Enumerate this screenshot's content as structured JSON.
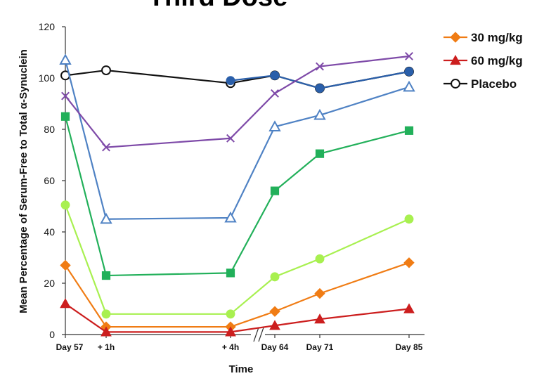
{
  "chart_data": {
    "type": "line",
    "title": "Third Dose",
    "xlabel": "Time",
    "ylabel": "Mean Percentage of Serum-Free to Total α-Synuclein",
    "ylim": [
      0,
      120
    ],
    "yticks": [
      0,
      20,
      40,
      60,
      80,
      100,
      120
    ],
    "categories": [
      "Day 57",
      "+ 1h",
      "+ 4h",
      "Day 64",
      "Day 71",
      "Day 85"
    ],
    "axis_break_after": "+ 4h",
    "legend_position": "top-right",
    "series": [
      {
        "name": "30 mg/kg",
        "color": "#f07c14",
        "marker": "diamond-filled",
        "legend": true,
        "values": [
          27,
          3,
          3,
          9,
          16,
          28
        ]
      },
      {
        "name": "60 mg/kg",
        "color": "#cc1e1e",
        "marker": "triangle-filled",
        "legend": true,
        "values": [
          12,
          1,
          1,
          3.5,
          6,
          10
        ]
      },
      {
        "name": "Placebo",
        "color": "#111111",
        "marker": "circle-open",
        "legend": true,
        "values": [
          101,
          103,
          98,
          101,
          96,
          102.5
        ]
      },
      {
        "color": "#2a5faa",
        "marker": "circle-filled",
        "legend": false,
        "values": [
          null,
          null,
          99,
          101,
          96,
          102.5
        ]
      },
      {
        "color": "#4f82c4",
        "marker": "triangle-open",
        "legend": false,
        "values": [
          107,
          45,
          45.5,
          81,
          85.5,
          96.5
        ]
      },
      {
        "color": "#7e4aa8",
        "marker": "x",
        "legend": false,
        "values": [
          93,
          73,
          76.5,
          94,
          104.5,
          108.5
        ]
      },
      {
        "color": "#22b05a",
        "marker": "square-filled",
        "legend": false,
        "values": [
          85,
          23,
          24,
          56,
          70.5,
          79.5
        ]
      },
      {
        "color": "#a8f050",
        "marker": "circle-filled",
        "legend": false,
        "values": [
          50.5,
          8,
          8,
          22.5,
          29.5,
          45
        ]
      }
    ]
  }
}
